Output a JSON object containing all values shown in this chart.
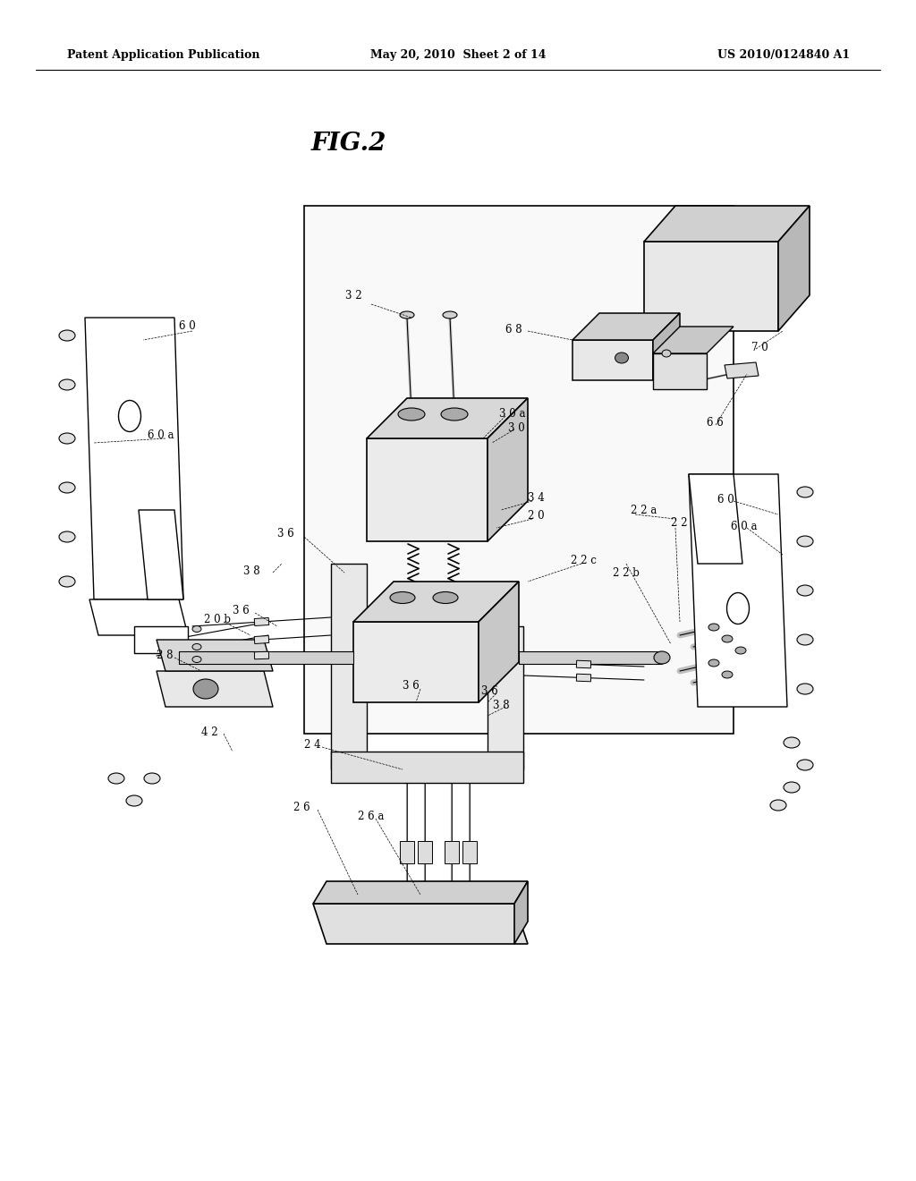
{
  "bg_color": "#ffffff",
  "header_left": "Patent Application Publication",
  "header_center": "May 20, 2010  Sheet 2 of 14",
  "header_right": "US 2010/0124840 A1",
  "fig_label": "FIG.2"
}
